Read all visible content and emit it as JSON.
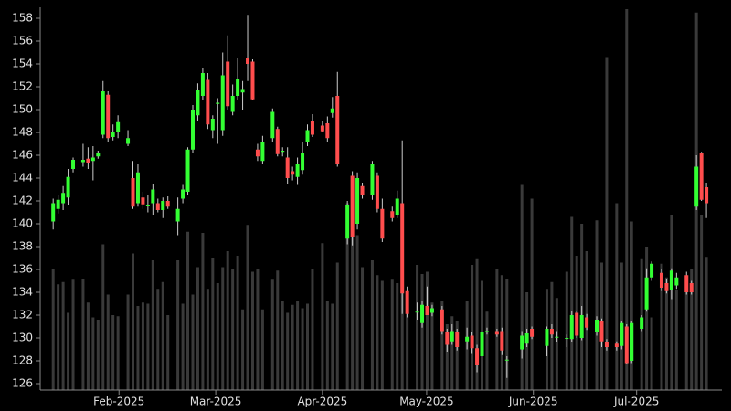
{
  "chart_data": {
    "type": "candlestick",
    "up_color": "#33ff33",
    "down_color": "#ff4d4d",
    "wick_color": "#cccccc",
    "volume_color": "#3a3a3a",
    "xlim": [
      -2.6,
      134.1
    ],
    "xticks": [
      {
        "value": 13.2,
        "label": "Feb-2025"
      },
      {
        "value": 32.6,
        "label": "Mar-2025"
      },
      {
        "value": 54.0,
        "label": "Apr-2025"
      },
      {
        "value": 74.9,
        "label": "May-2025"
      },
      {
        "value": 96.3,
        "label": "Jun-2025"
      },
      {
        "value": 117.0,
        "label": "Jul-2025"
      }
    ],
    "ylim": [
      125.44,
      158.96
    ],
    "yticks": [
      126,
      128,
      130,
      132,
      134,
      136,
      138,
      140,
      142,
      144,
      146,
      148,
      150,
      152,
      154,
      156,
      158
    ],
    "open": [
      140.2,
      141.3,
      141.8,
      142.3,
      144.8,
      null,
      145.4,
      145.7,
      145.5,
      145.9,
      147.8,
      151.3,
      147.6,
      148.0,
      null,
      147.0,
      144.0,
      141.8,
      142.3,
      141.6,
      141.8,
      141.8,
      141.2,
      142.0,
      null,
      140.2,
      142.2,
      142.8,
      146.5,
      149.5,
      151.2,
      152.6,
      148.2,
      150.5,
      148.2,
      154.2,
      149.8,
      151.2,
      151.5,
      154.5,
      154.2,
      146.5,
      145.5,
      null,
      147.5,
      148.3,
      146.3,
      145.8,
      144.6,
      144.1,
      144.7,
      147.2,
      149.0,
      null,
      148.6,
      148.8,
      149.7,
      151.2,
      null,
      138.7,
      144.2,
      140.0,
      143.3,
      null,
      142.5,
      144.2,
      141.3,
      null,
      141.1,
      140.8,
      141.8,
      134.1,
      null,
      132.3,
      131.3,
      132.8,
      132.2,
      null,
      132.5,
      130.5,
      129.7,
      130.5,
      null,
      129.7,
      130.2,
      129.1,
      128.4,
      130.6,
      null,
      130.6,
      130.6,
      128.1,
      null,
      null,
      129.0,
      129.5,
      130.8,
      null,
      null,
      129.3,
      130.8,
      130.1,
      null,
      130.0,
      129.9,
      132.2,
      130.0,
      131.8,
      null,
      130.5,
      131.5,
      129.6,
      null,
      129.5,
      129.3,
      131.0,
      128.0,
      null,
      130.8,
      132.5,
      135.3,
      null,
      135.7,
      134.8,
      134.2,
      134.6,
      null,
      135.5,
      134.8,
      141.5,
      146.2,
      143.2
    ],
    "high": [
      142.2,
      142.5,
      143.3,
      144.8,
      145.8,
      null,
      147.0,
      146.7,
      146.8,
      146.4,
      152.5,
      151.6,
      148.7,
      149.5,
      null,
      148.2,
      145.5,
      145.2,
      142.8,
      142.5,
      143.5,
      142.2,
      142.3,
      142.4,
      null,
      142.3,
      143.4,
      146.7,
      150.4,
      152.3,
      153.6,
      153.2,
      149.5,
      151.0,
      155.0,
      156.5,
      152.2,
      154.5,
      152.5,
      158.3,
      154.4,
      147.0,
      147.7,
      null,
      150.1,
      148.5,
      146.7,
      146.7,
      145.0,
      145.8,
      147.2,
      148.7,
      149.6,
      null,
      149.0,
      149.4,
      151.1,
      153.3,
      null,
      142.0,
      144.6,
      144.5,
      143.6,
      null,
      145.5,
      144.5,
      142.2,
      null,
      141.5,
      142.9,
      147.3,
      134.5,
      null,
      133.1,
      133.2,
      134.5,
      132.9,
      null,
      132.8,
      130.8,
      131.2,
      130.8,
      null,
      130.9,
      130.5,
      129.4,
      130.7,
      130.9,
      null,
      130.8,
      130.9,
      128.4,
      null,
      null,
      130.6,
      130.8,
      131.0,
      null,
      null,
      131.0,
      131.2,
      130.6,
      null,
      130.3,
      132.4,
      132.4,
      132.8,
      132.1,
      null,
      131.9,
      131.7,
      129.9,
      null,
      129.7,
      131.5,
      131.2,
      131.5,
      null,
      132.0,
      136.1,
      136.7,
      null,
      136.0,
      135.2,
      136.1,
      135.7,
      null,
      135.8,
      135.0,
      146.0,
      146.3,
      143.6
    ],
    "low": [
      139.5,
      140.9,
      141.2,
      141.6,
      144.5,
      null,
      145.0,
      144.8,
      143.8,
      145.7,
      147.5,
      147.2,
      147.3,
      147.5,
      null,
      146.8,
      141.3,
      141.5,
      141.3,
      141.0,
      140.8,
      141.0,
      140.5,
      141.3,
      null,
      139.0,
      141.8,
      142.5,
      146.2,
      149.0,
      150.8,
      148.3,
      147.5,
      147.0,
      147.7,
      150.0,
      149.5,
      150.8,
      150.0,
      152.5,
      150.8,
      145.5,
      145.2,
      null,
      147.2,
      145.9,
      145.9,
      143.5,
      143.8,
      143.4,
      144.3,
      146.8,
      147.6,
      null,
      148.0,
      147.2,
      149.3,
      145.0,
      null,
      138.2,
      138.1,
      139.5,
      142.2,
      null,
      142.1,
      141.0,
      138.4,
      null,
      140.2,
      140.5,
      132.1,
      131.8,
      null,
      131.6,
      130.9,
      132.0,
      131.9,
      null,
      130.3,
      128.8,
      129.4,
      128.9,
      null,
      129.0,
      128.6,
      127.0,
      127.9,
      130.3,
      null,
      130.1,
      128.5,
      126.5,
      null,
      null,
      128.2,
      129.2,
      129.9,
      null,
      null,
      128.4,
      130.0,
      129.6,
      null,
      129.2,
      129.6,
      130.0,
      129.8,
      130.7,
      null,
      130.2,
      129.2,
      128.9,
      null,
      128.9,
      129.0,
      127.7,
      127.8,
      null,
      130.6,
      132.3,
      135.0,
      null,
      134.1,
      133.9,
      133.4,
      134.3,
      null,
      133.8,
      133.8,
      141.2,
      142.0,
      140.5
    ],
    "close": [
      141.8,
      142.1,
      142.7,
      144.1,
      145.6,
      null,
      145.6,
      145.3,
      145.8,
      146.2,
      151.6,
      147.5,
      148.0,
      148.9,
      null,
      147.5,
      141.5,
      144.5,
      141.7,
      141.6,
      143.0,
      141.2,
      142.0,
      141.5,
      null,
      141.3,
      143.0,
      146.5,
      150.0,
      151.7,
      153.2,
      148.7,
      149.2,
      150.6,
      153.0,
      150.3,
      151.2,
      152.7,
      151.8,
      154.0,
      150.9,
      145.9,
      147.2,
      null,
      149.8,
      146.1,
      146.4,
      144.0,
      144.3,
      145.2,
      146.2,
      148.2,
      147.8,
      null,
      148.1,
      147.5,
      150.1,
      145.2,
      null,
      141.6,
      138.8,
      144.0,
      142.5,
      null,
      145.2,
      141.3,
      138.7,
      null,
      140.5,
      142.2,
      133.9,
      132.1,
      null,
      132.3,
      132.9,
      132.0,
      132.6,
      null,
      130.6,
      129.4,
      130.6,
      129.2,
      null,
      130.1,
      129.1,
      127.6,
      130.5,
      130.6,
      null,
      130.3,
      128.9,
      128.1,
      null,
      null,
      130.2,
      130.4,
      130.1,
      null,
      null,
      130.8,
      130.3,
      130.1,
      null,
      130.0,
      132.0,
      130.2,
      132.0,
      130.9,
      null,
      131.6,
      129.7,
      129.2,
      null,
      129.2,
      131.3,
      127.8,
      131.3,
      null,
      131.8,
      135.3,
      136.5,
      null,
      134.4,
      134.1,
      135.9,
      135.3,
      null,
      134.0,
      134.0,
      145.0,
      142.1,
      141.8
    ],
    "volume": [
      136,
      134.7,
      134.9,
      132.2,
      135.1,
      null,
      135.2,
      133.1,
      131.8,
      131.6,
      138.2,
      133.8,
      132.0,
      131.9,
      null,
      133.8,
      137.4,
      132.8,
      133.1,
      133.0,
      136.8,
      134.3,
      134.9,
      132.0,
      null,
      136.8,
      133.0,
      139.3,
      133.8,
      136.2,
      139.2,
      134.3,
      137.0,
      134.8,
      136.2,
      137.6,
      136.0,
      137.2,
      132.5,
      139.9,
      135.8,
      136.0,
      132.5,
      null,
      135.1,
      135.9,
      133.2,
      132.2,
      132.9,
      133.2,
      132.6,
      133.0,
      136.0,
      null,
      138.3,
      133.2,
      133.0,
      136.6,
      null,
      141.8,
      141.2,
      139.0,
      136.2,
      null,
      136.8,
      135.5,
      135.0,
      null,
      135.1,
      134.8,
      135.6,
      133.5,
      null,
      136.4,
      135.6,
      135.8,
      133.1,
      null,
      133.2,
      131.2,
      131.9,
      131.5,
      null,
      133.2,
      136.4,
      136.9,
      135.0,
      132.3,
      null,
      136.0,
      135.5,
      135.2,
      null,
      null,
      143.4,
      134.0,
      142.2,
      null,
      null,
      134.3,
      134.9,
      133.5,
      null,
      135.8,
      140.6,
      137.2,
      140.0,
      137.6,
      null,
      140.3,
      136.6,
      154.6,
      null,
      141.8,
      136.6,
      158.8,
      140.2,
      null,
      136.9,
      138.0,
      131.8,
      null,
      136.5,
      135.3,
      140.8,
      134.2,
      null,
      134.8,
      136.0,
      158.5,
      140.8,
      137.1
    ]
  }
}
